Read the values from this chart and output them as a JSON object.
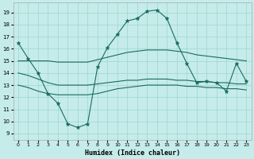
{
  "xlabel": "Humidex (Indice chaleur)",
  "bg_color": "#c5ecea",
  "grid_color": "#9dd4d0",
  "line_color": "#1a6b5e",
  "x_ticks": [
    0,
    1,
    2,
    3,
    4,
    5,
    6,
    7,
    8,
    9,
    10,
    11,
    12,
    13,
    14,
    15,
    16,
    17,
    18,
    19,
    20,
    21,
    22,
    23
  ],
  "y_ticks": [
    9,
    10,
    11,
    12,
    13,
    14,
    15,
    16,
    17,
    18,
    19
  ],
  "ylim": [
    8.5,
    19.8
  ],
  "xlim": [
    -0.5,
    23.5
  ],
  "y_main": [
    16.5,
    15.2,
    14.0,
    12.3,
    11.5,
    9.8,
    9.5,
    9.8,
    14.5,
    16.1,
    17.2,
    18.3,
    18.5,
    19.1,
    19.2,
    18.5,
    16.5,
    14.8,
    13.2,
    13.3,
    13.2,
    12.5,
    14.8,
    13.3
  ],
  "y_upper": [
    15.0,
    15.0,
    15.0,
    15.0,
    14.9,
    14.9,
    14.9,
    14.9,
    15.1,
    15.3,
    15.5,
    15.7,
    15.8,
    15.9,
    15.9,
    15.9,
    15.8,
    15.7,
    15.5,
    15.4,
    15.3,
    15.2,
    15.1,
    15.0
  ],
  "y_mean": [
    14.0,
    13.8,
    13.5,
    13.2,
    13.0,
    13.0,
    13.0,
    13.0,
    13.1,
    13.2,
    13.3,
    13.4,
    13.4,
    13.5,
    13.5,
    13.5,
    13.4,
    13.4,
    13.3,
    13.3,
    13.2,
    13.2,
    13.1,
    13.1
  ],
  "y_lower": [
    13.0,
    12.8,
    12.5,
    12.3,
    12.2,
    12.2,
    12.2,
    12.2,
    12.3,
    12.5,
    12.7,
    12.8,
    12.9,
    13.0,
    13.0,
    13.0,
    13.0,
    12.9,
    12.9,
    12.8,
    12.8,
    12.7,
    12.7,
    12.6
  ]
}
